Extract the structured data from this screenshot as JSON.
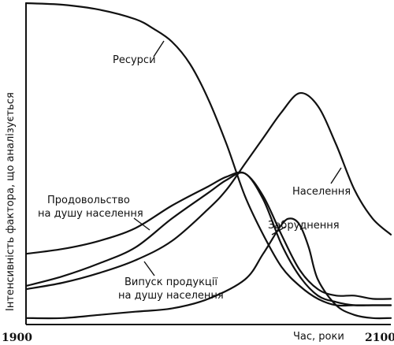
{
  "chart_data": {
    "type": "line",
    "title": "",
    "xlabel": "Час, роки",
    "ylabel": "Інтенсивність фактора, що аналізується",
    "xlim": [
      1900,
      2100
    ],
    "ylim": [
      0,
      100
    ],
    "x_ticks": [
      "1900",
      "2100"
    ],
    "grid": false,
    "series": [
      {
        "name": "Ресурси",
        "x": [
          1900,
          1920,
          1940,
          1960,
          1970,
          1980,
          1990,
          2000,
          2010,
          2020,
          2030,
          2040,
          2050,
          2060,
          2070,
          2080,
          2090,
          2100
        ],
        "values": [
          100,
          99.5,
          98,
          95,
          92,
          88,
          81,
          70,
          56,
          40,
          28,
          18,
          12,
          8,
          6,
          6,
          6,
          6
        ]
      },
      {
        "name": "Населення",
        "x": [
          1900,
          1920,
          1940,
          1960,
          1980,
          2000,
          2010,
          2020,
          2030,
          2040,
          2050,
          2060,
          2070,
          2080,
          2090,
          2100
        ],
        "values": [
          11,
          13,
          16,
          20,
          26,
          36,
          42,
          50,
          58,
          66,
          72,
          68,
          56,
          42,
          33,
          28
        ]
      },
      {
        "name": "Продовольство на душу населення",
        "x": [
          1900,
          1920,
          1940,
          1960,
          1980,
          2000,
          2010,
          2020,
          2030,
          2040,
          2050,
          2060,
          2070,
          2080,
          2090,
          2100
        ],
        "values": [
          22,
          23.5,
          26,
          30,
          37,
          43,
          46,
          47,
          40,
          28,
          17,
          11,
          9,
          9,
          8,
          8
        ]
      },
      {
        "name": "Випуск продукції на душу населення",
        "x": [
          1900,
          1920,
          1940,
          1960,
          1980,
          2000,
          2010,
          2020,
          2030,
          2040,
          2050,
          2060,
          2070,
          2080,
          2090,
          2100
        ],
        "values": [
          12,
          15,
          19,
          24,
          33,
          41,
          45,
          47,
          39,
          25,
          15,
          9,
          7,
          6,
          6,
          6
        ]
      },
      {
        "name": "Забруднення",
        "x": [
          1900,
          1920,
          1940,
          1960,
          1980,
          2000,
          2020,
          2030,
          2040,
          2045,
          2050,
          2055,
          2060,
          2070,
          2080,
          2090,
          2100
        ],
        "values": [
          2,
          2,
          3,
          4,
          5,
          8,
          14,
          22,
          31,
          33,
          31,
          24,
          14,
          6,
          3,
          2,
          2
        ]
      }
    ]
  },
  "labels": {
    "resources": "Ресурси",
    "population": "Населення",
    "food_line1": "Продовольство",
    "food_line2": "на душу населення",
    "pollution": "Забруднення",
    "output_line1": "Випуск продукції",
    "output_line2": "на душу населення"
  }
}
